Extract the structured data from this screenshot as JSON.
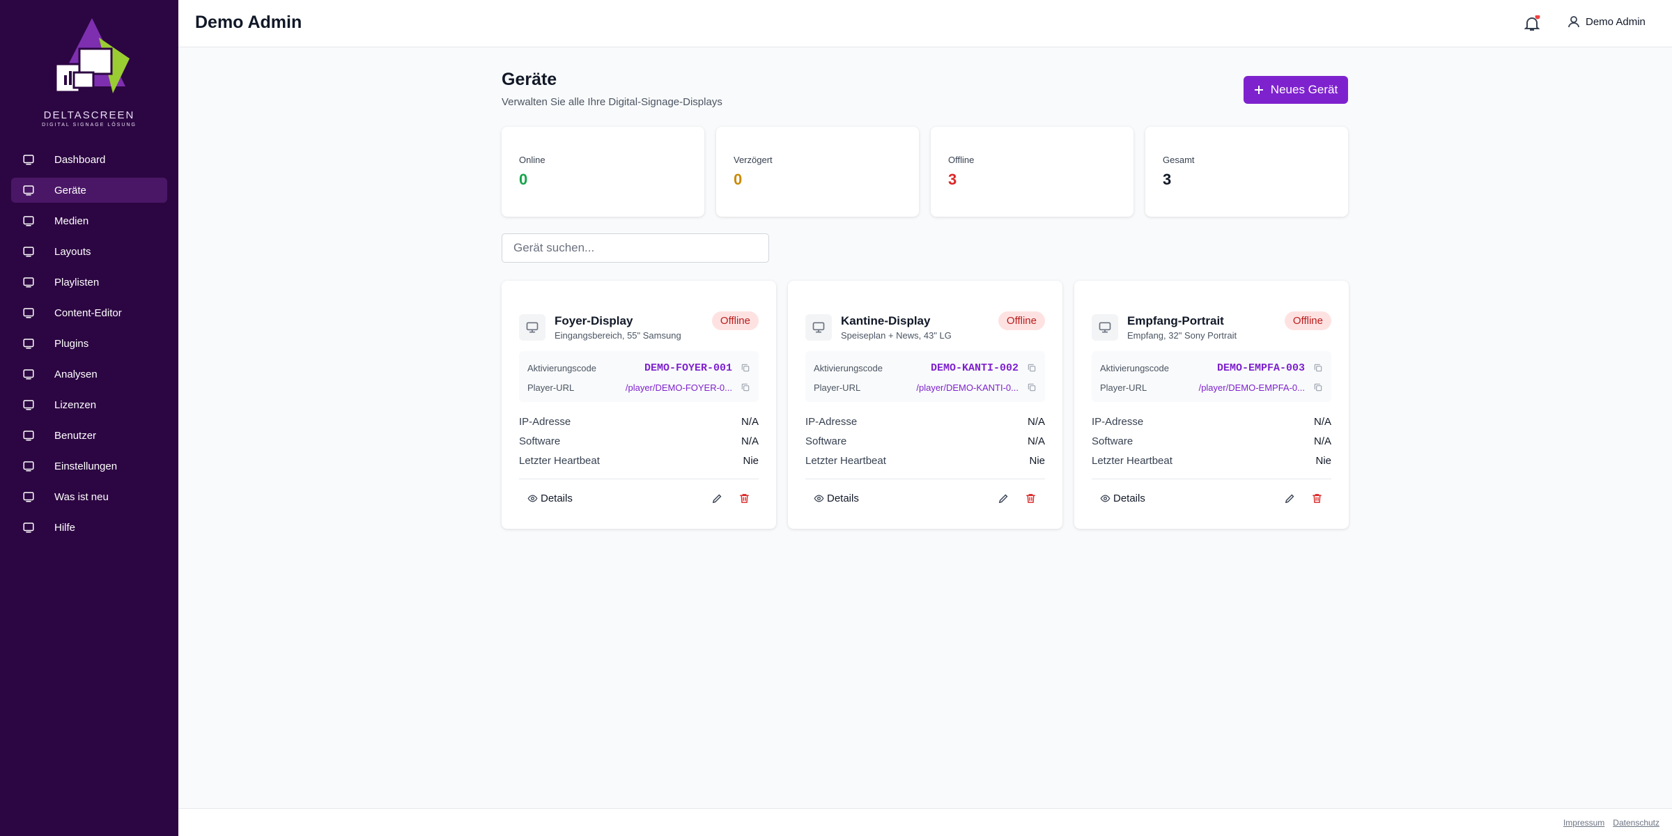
{
  "header": {
    "title": "Demo Admin",
    "user": "Demo Admin"
  },
  "sidebar": {
    "brand": "DELTASCREEN",
    "tagline": "DIGITAL SIGNAGE LÖSUNG",
    "active": 1,
    "nav": [
      "Dashboard",
      "Geräte",
      "Medien",
      "Layouts",
      "Playlisten",
      "Content-Editor",
      "Plugins",
      "Analysen",
      "Lizenzen",
      "Benutzer",
      "Einstellungen",
      "Was ist neu",
      "Hilfe"
    ]
  },
  "page": {
    "title": "Geräte",
    "subtitle": "Verwalten Sie alle Ihre Digital-Signage-Displays",
    "button": "Neues Gerät",
    "search_placeholder": "Gerät suchen..."
  },
  "stats": [
    {
      "label": "Online",
      "value": 0,
      "color": "#16a34a"
    },
    {
      "label": "Verzögert",
      "value": 0,
      "color": "#ca8a04"
    },
    {
      "label": "Offline",
      "value": 3,
      "color": "#dc2626"
    },
    {
      "label": "Gesamt",
      "value": 3,
      "color": "#111827"
    }
  ],
  "devices": [
    {
      "name": "Foyer-Display",
      "description": "Eingangsbereich, 55\" Samsung",
      "status": "Offline",
      "activation_label": "Aktivierungscode",
      "activation_code": "DEMO-FOYER-001",
      "url_label": "Player-URL",
      "url": "/player/DEMO-FOYER-0...",
      "rows": [
        {
          "label": "IP-Adresse",
          "value": "N/A"
        },
        {
          "label": "Software",
          "value": "N/A"
        },
        {
          "label": "Letzter Heartbeat",
          "value": "Nie"
        }
      ],
      "details": "Details"
    },
    {
      "name": "Kantine-Display",
      "description": "Speiseplan + News, 43\" LG",
      "status": "Offline",
      "activation_label": "Aktivierungscode",
      "activation_code": "DEMO-KANTI-002",
      "url_label": "Player-URL",
      "url": "/player/DEMO-KANTI-0...",
      "rows": [
        {
          "label": "IP-Adresse",
          "value": "N/A"
        },
        {
          "label": "Software",
          "value": "N/A"
        },
        {
          "label": "Letzter Heartbeat",
          "value": "Nie"
        }
      ],
      "details": "Details"
    },
    {
      "name": "Empfang-Portrait",
      "description": "Empfang, 32\" Sony Portrait",
      "status": "Offline",
      "activation_label": "Aktivierungscode",
      "activation_code": "DEMO-EMPFA-003",
      "url_label": "Player-URL",
      "url": "/player/DEMO-EMPFA-0...",
      "rows": [
        {
          "label": "IP-Adresse",
          "value": "N/A"
        },
        {
          "label": "Software",
          "value": "N/A"
        },
        {
          "label": "Letzter Heartbeat",
          "value": "Nie"
        }
      ],
      "details": "Details"
    }
  ],
  "footer": {
    "links": [
      "Impressum",
      "Datenschutz"
    ]
  }
}
